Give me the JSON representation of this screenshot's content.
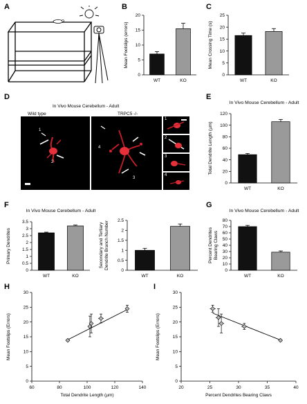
{
  "panels": {
    "A": {
      "letter": "A"
    },
    "B": {
      "letter": "B"
    },
    "C": {
      "letter": "C"
    },
    "D": {
      "letter": "D",
      "title": "In Vivo Mouse Cerebellum - Adult",
      "left_label": "Wild type",
      "right_label": "TRPC5 -/-",
      "markers_left": [
        "1",
        "2"
      ],
      "markers_right": [
        "4",
        "3"
      ],
      "insets": [
        "1",
        "2",
        "3",
        "4"
      ]
    },
    "E": {
      "letter": "E"
    },
    "F": {
      "letter": "F"
    },
    "G": {
      "letter": "G"
    },
    "H": {
      "letter": "H"
    },
    "I": {
      "letter": "I"
    }
  },
  "chart_data": [
    {
      "id": "B",
      "type": "bar",
      "title": "",
      "xlabel": "",
      "ylabel": "Mean Footslips (errors)",
      "categories": [
        "WT",
        "KO"
      ],
      "values": [
        7,
        15.5
      ],
      "errors": [
        0.8,
        1.8
      ],
      "colors": [
        "#111111",
        "#9a9a9a"
      ],
      "ylim": [
        0,
        20
      ],
      "yticks": [
        0,
        5,
        10,
        15,
        20
      ]
    },
    {
      "id": "C",
      "type": "bar",
      "title": "",
      "xlabel": "",
      "ylabel": "Mean Crossing Time (s)",
      "categories": [
        "WT",
        "KO"
      ],
      "values": [
        16.5,
        18.2
      ],
      "errors": [
        1.0,
        1.2
      ],
      "colors": [
        "#111111",
        "#9a9a9a"
      ],
      "ylim": [
        0,
        25
      ],
      "yticks": [
        0,
        5,
        10,
        15,
        20,
        25
      ]
    },
    {
      "id": "E",
      "type": "bar",
      "title": "In Vivo Mouse Cerebellum - Adult",
      "xlabel": "",
      "ylabel": "Total Dendrite Length (µm)",
      "categories": [
        "WT",
        "KO"
      ],
      "values": [
        49,
        106
      ],
      "errors": [
        2,
        4
      ],
      "colors": [
        "#111111",
        "#9a9a9a"
      ],
      "ylim": [
        0,
        120
      ],
      "yticks": [
        0,
        20,
        40,
        60,
        80,
        100,
        120
      ]
    },
    {
      "id": "F1",
      "type": "bar",
      "title": "In Vivo Mouse Cerebellum - Adult",
      "xlabel": "",
      "ylabel": "Primary Dendrites",
      "categories": [
        "WT",
        "KO"
      ],
      "values": [
        2.7,
        3.2
      ],
      "errors": [
        0.05,
        0.06
      ],
      "colors": [
        "#111111",
        "#9a9a9a"
      ],
      "ylim": [
        0,
        3.5
      ],
      "yticks": [
        0,
        0.5,
        1,
        1.5,
        2,
        2.5,
        3,
        3.5
      ]
    },
    {
      "id": "F2",
      "type": "bar",
      "title": "",
      "xlabel": "",
      "ylabel": "Secondary and Tertiary Dendrite Branch Number",
      "categories": [
        "WT",
        "KO"
      ],
      "values": [
        1.0,
        2.2
      ],
      "errors": [
        0.1,
        0.12
      ],
      "colors": [
        "#111111",
        "#9a9a9a"
      ],
      "ylim": [
        0,
        2.5
      ],
      "yticks": [
        0,
        0.5,
        1,
        1.5,
        2,
        2.5
      ]
    },
    {
      "id": "G",
      "type": "bar",
      "title": "In Vivo Mouse Cerebellum - Adult",
      "xlabel": "",
      "ylabel": "Percent Dendrites Bearing Claws",
      "categories": [
        "WT",
        "KO"
      ],
      "values": [
        70,
        29
      ],
      "errors": [
        2,
        2
      ],
      "colors": [
        "#111111",
        "#9a9a9a"
      ],
      "ylim": [
        0,
        80
      ],
      "yticks": [
        0,
        10,
        20,
        30,
        40,
        50,
        60,
        70,
        80
      ]
    },
    {
      "id": "H",
      "type": "scatter",
      "title": "",
      "xlabel": "Total Dendrite Length (µm)",
      "ylabel": "Mean Footslips (Errors)",
      "x": [
        86,
        102,
        103,
        110,
        129
      ],
      "y": [
        13.8,
        18.5,
        19.5,
        21.2,
        24.5
      ],
      "xerr": [
        0,
        0,
        0,
        2,
        1
      ],
      "yerr": [
        0,
        3.5,
        3.2,
        1.5,
        1.2
      ],
      "fit": {
        "x": [
          86,
          129
        ],
        "y": [
          14.0,
          24.2
        ]
      },
      "xlim": [
        60,
        140
      ],
      "ylim": [
        0,
        30
      ],
      "xticks": [
        60,
        80,
        100,
        120,
        140
      ],
      "yticks": [
        0,
        5,
        10,
        15,
        20,
        25,
        30
      ]
    },
    {
      "id": "I",
      "type": "scatter",
      "title": "",
      "xlabel": "Percent Dendrites Bearing Claws",
      "ylabel": "Mean Footslips (Errors)",
      "x": [
        25.5,
        26.5,
        27,
        31,
        37.3
      ],
      "y": [
        24.5,
        21.5,
        19.5,
        18.5,
        13.8
      ],
      "xerr": [
        0.5,
        0.5,
        0.5,
        0.5,
        0
      ],
      "yerr": [
        1.2,
        3.0,
        3.2,
        1.0,
        0
      ],
      "fit": {
        "x": [
          25.5,
          37.3
        ],
        "y": [
          23.0,
          13.9
        ]
      },
      "xlim": [
        20,
        40
      ],
      "ylim": [
        0,
        30
      ],
      "xticks": [
        20,
        25,
        30,
        35,
        40
      ],
      "yticks": [
        0,
        5,
        10,
        15,
        20,
        25,
        30
      ]
    }
  ]
}
